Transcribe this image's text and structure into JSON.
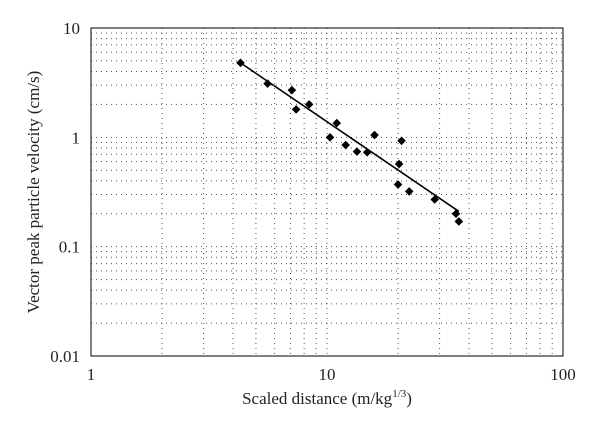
{
  "chart_data": {
    "type": "scatter",
    "title": "",
    "xlabel": "Scaled distance (m/kg",
    "xlabel_sup": "1/3",
    "xlabel_close": ")",
    "ylabel": "Vector peak particle velocity (cm/s)",
    "x_scale": "log",
    "y_scale": "log",
    "xlim": [
      1,
      100
    ],
    "ylim": [
      0.01,
      10
    ],
    "x_ticks": [
      1,
      10,
      100
    ],
    "x_tick_labels": [
      "1",
      "10",
      "100"
    ],
    "y_ticks": [
      0.01,
      0.1,
      1,
      10
    ],
    "y_tick_labels": [
      "0.01",
      "0.1",
      "1",
      "10"
    ],
    "grid": "dotted, major and minor",
    "legend": "none",
    "marker": "diamond",
    "colors": {
      "points": "#000000",
      "line": "#000000",
      "grid": "#555555",
      "frame": "#000000"
    },
    "points": [
      {
        "x": 4.3,
        "y": 4.8
      },
      {
        "x": 5.6,
        "y": 3.1
      },
      {
        "x": 7.1,
        "y": 2.7
      },
      {
        "x": 7.4,
        "y": 1.8
      },
      {
        "x": 8.4,
        "y": 2.0
      },
      {
        "x": 10.3,
        "y": 1.0
      },
      {
        "x": 11.0,
        "y": 1.35
      },
      {
        "x": 12.0,
        "y": 0.85
      },
      {
        "x": 13.4,
        "y": 0.74
      },
      {
        "x": 14.8,
        "y": 0.73
      },
      {
        "x": 15.9,
        "y": 1.05
      },
      {
        "x": 20.0,
        "y": 0.37
      },
      {
        "x": 20.2,
        "y": 0.57
      },
      {
        "x": 20.7,
        "y": 0.93
      },
      {
        "x": 22.3,
        "y": 0.32
      },
      {
        "x": 28.6,
        "y": 0.27
      },
      {
        "x": 35.2,
        "y": 0.2
      },
      {
        "x": 36.2,
        "y": 0.17
      }
    ],
    "fit_line": [
      {
        "x": 4.3,
        "y": 4.8
      },
      {
        "x": 36.2,
        "y": 0.21
      }
    ]
  }
}
